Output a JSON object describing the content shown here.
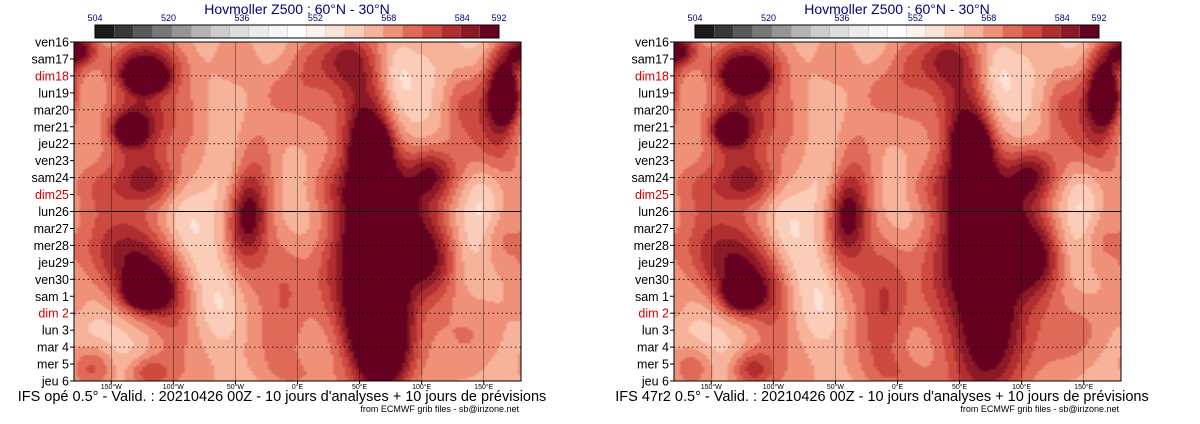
{
  "colors": {
    "title": "#000080",
    "weekday": "#000000",
    "sunday": "#d40000",
    "colorbar": [
      "#1a1a1a",
      "#383838",
      "#585858",
      "#787878",
      "#969696",
      "#b4b4b4",
      "#cccccc",
      "#dddddd",
      "#ebebeb",
      "#f5f5f5",
      "#ffffff",
      "#fff2ec",
      "#fde2d6",
      "#fbcdb9",
      "#f7b39a",
      "#ef9078",
      "#e06a58",
      "#cd4a40",
      "#b02e30",
      "#8c1a26",
      "#660020"
    ]
  },
  "chart_data": [
    {
      "type": "heatmap",
      "title": "Hovmoller Z500 : 60°N - 30°N",
      "caption": "IFS opé 0.5° - Valid. : 20210426 00Z - 10 jours d'analyses + 10 jours de prévisions",
      "credit": "from ECMWF grib files - sb@irizone.net",
      "colorbar_ticks": [
        "504",
        "520",
        "536",
        "552",
        "568",
        "584",
        "592"
      ],
      "colorbar_range": [
        504,
        592
      ],
      "xlim": [
        -180,
        180
      ],
      "x_ticks": [
        "150°W",
        "100°W",
        "50°W",
        "0°E",
        "50°E",
        "100°E",
        "150°E"
      ],
      "x_tick_values": [
        -150,
        -100,
        -50,
        0,
        50,
        100,
        150
      ],
      "y_labels": [
        "ven16",
        "sam17",
        "dim18",
        "lun19",
        "mar20",
        "mer21",
        "jeu22",
        "ven23",
        "sam24",
        "dim25",
        "lun26",
        "mar27",
        "mer28",
        "jeu29",
        "ven30",
        "sam 1",
        "dim 2",
        "lun 3",
        "mar 4",
        "mer 5",
        "jeu 6"
      ],
      "sunday_labels": [
        "dim18",
        "dim25",
        "dim 2"
      ],
      "analysis_forecast_split": "lun26",
      "blobs": [
        {
          "lon": -125,
          "day": 1.5,
          "w": 18,
          "h": 0.9,
          "v": 575
        },
        {
          "lon": -122,
          "day": 2.2,
          "w": 10,
          "h": 0.5,
          "v": 584
        },
        {
          "lon": -132,
          "day": 5.0,
          "w": 18,
          "h": 1.5,
          "v": 577
        },
        {
          "lon": -135,
          "day": 5.2,
          "w": 7,
          "h": 0.5,
          "v": 585
        },
        {
          "lon": -103,
          "day": 3.5,
          "w": 25,
          "h": 2.5,
          "v": 562
        },
        {
          "lon": -120,
          "day": 8.2,
          "w": 17,
          "h": 1.0,
          "v": 570
        },
        {
          "lon": -160,
          "day": 8.5,
          "w": 20,
          "h": 1.3,
          "v": 563
        },
        {
          "lon": -120,
          "day": 14.3,
          "w": 22,
          "h": 1.5,
          "v": 576
        },
        {
          "lon": -122,
          "day": 14.8,
          "w": 10,
          "h": 0.6,
          "v": 590
        },
        {
          "lon": -140,
          "day": 12.0,
          "w": 30,
          "h": 1.5,
          "v": 564
        },
        {
          "lon": -165,
          "day": 19.2,
          "w": 13,
          "h": 1.0,
          "v": 568
        },
        {
          "lon": -120,
          "day": 19.5,
          "w": 12,
          "h": 0.7,
          "v": 566
        },
        {
          "lon": -100,
          "day": 16.0,
          "w": 12,
          "h": 2.0,
          "v": 560
        },
        {
          "lon": -50,
          "day": 0.8,
          "w": 16,
          "h": 1.5,
          "v": 563
        },
        {
          "lon": -40,
          "day": 10.0,
          "w": 10,
          "h": 1.5,
          "v": 568
        },
        {
          "lon": -45,
          "day": 12.0,
          "w": 15,
          "h": 2.0,
          "v": 566
        },
        {
          "lon": -30,
          "day": 8.0,
          "w": 15,
          "h": 2.5,
          "v": 562
        },
        {
          "lon": -15,
          "day": 3.0,
          "w": 12,
          "h": 1.0,
          "v": 558
        },
        {
          "lon": -10,
          "day": 14.5,
          "w": 12,
          "h": 2.5,
          "v": 558
        },
        {
          "lon": -20,
          "day": 18.5,
          "w": 18,
          "h": 1.8,
          "v": 560
        },
        {
          "lon": 0,
          "day": 19.8,
          "w": 20,
          "h": 1.0,
          "v": 560
        },
        {
          "lon": 25,
          "day": 8.5,
          "w": 18,
          "h": 1.2,
          "v": 563
        },
        {
          "lon": 35,
          "day": 13.5,
          "w": 16,
          "h": 3.0,
          "v": 563
        },
        {
          "lon": 8,
          "day": 1.5,
          "w": 12,
          "h": 1.5,
          "v": 558
        },
        {
          "lon": 10,
          "day": 5.5,
          "w": 15,
          "h": 1.5,
          "v": 558
        },
        {
          "lon": 55,
          "day": 4.8,
          "w": 16,
          "h": 2.5,
          "v": 574
        },
        {
          "lon": 60,
          "day": 6.2,
          "w": 8,
          "h": 0.8,
          "v": 582
        },
        {
          "lon": 62,
          "day": 9.5,
          "w": 13,
          "h": 3.0,
          "v": 575
        },
        {
          "lon": 63,
          "day": 13.0,
          "w": 22,
          "h": 4.0,
          "v": 574
        },
        {
          "lon": 62,
          "day": 16.5,
          "w": 16,
          "h": 2.0,
          "v": 578
        },
        {
          "lon": 70,
          "day": 18.0,
          "w": 16,
          "h": 2.2,
          "v": 578
        },
        {
          "lon": 40,
          "day": 1.0,
          "w": 16,
          "h": 1.2,
          "v": 568
        },
        {
          "lon": 95,
          "day": 11.5,
          "w": 22,
          "h": 2.5,
          "v": 568
        },
        {
          "lon": 110,
          "day": 13.0,
          "w": 14,
          "h": 1.6,
          "v": 567
        },
        {
          "lon": 108,
          "day": 7.8,
          "w": 14,
          "h": 1.1,
          "v": 571
        },
        {
          "lon": 133,
          "day": 3.5,
          "w": 12,
          "h": 1.5,
          "v": 562
        },
        {
          "lon": 155,
          "day": 6.5,
          "w": 16,
          "h": 1.5,
          "v": 560
        },
        {
          "lon": 163,
          "day": 3.0,
          "w": 10,
          "h": 1.8,
          "v": 576
        },
        {
          "lon": 168,
          "day": 3.3,
          "w": 6,
          "h": 0.8,
          "v": 584
        },
        {
          "lon": 175,
          "day": 0.8,
          "w": 12,
          "h": 1.0,
          "v": 566
        },
        {
          "lon": 150,
          "day": 17.0,
          "w": 20,
          "h": 1.5,
          "v": 556
        },
        {
          "lon": 160,
          "day": 11.5,
          "w": 12,
          "h": 1.5,
          "v": 562
        },
        {
          "lon": -175,
          "day": 0.4,
          "w": 10,
          "h": 0.6,
          "v": 572
        },
        {
          "lon": -178,
          "day": 15.5,
          "w": 8,
          "h": 1.0,
          "v": 556
        },
        {
          "lon": -60,
          "day": 7.0,
          "w": 12,
          "h": 2.5,
          "v": 545
        },
        {
          "lon": -90,
          "day": 10.5,
          "w": 14,
          "h": 2.0,
          "v": 547
        },
        {
          "lon": -60,
          "day": 15.5,
          "w": 12,
          "h": 2.0,
          "v": 547
        },
        {
          "lon": 150,
          "day": 9.5,
          "w": 10,
          "h": 2.0,
          "v": 546
        },
        {
          "lon": 80,
          "day": 2.0,
          "w": 10,
          "h": 1.5,
          "v": 548
        }
      ]
    },
    {
      "type": "heatmap",
      "title": "Hovmoller Z500 : 60°N - 30°N",
      "caption": "IFS 47r2 0.5° - Valid. : 20210426 00Z - 10 jours d'analyses + 10 jours de prévisions",
      "credit": "from ECMWF grib files - sb@irizone.net",
      "colorbar_ticks": [
        "504",
        "520",
        "536",
        "552",
        "568",
        "584",
        "592"
      ],
      "colorbar_range": [
        504,
        592
      ],
      "xlim": [
        -180,
        180
      ],
      "x_ticks": [
        "150°W",
        "100°W",
        "50°W",
        "0°E",
        "50°E",
        "100°E",
        "150°E"
      ],
      "x_tick_values": [
        -150,
        -100,
        -50,
        0,
        50,
        100,
        150
      ],
      "y_labels": [
        "ven16",
        "sam17",
        "dim18",
        "lun19",
        "mar20",
        "mer21",
        "jeu22",
        "ven23",
        "sam24",
        "dim25",
        "lun26",
        "mar27",
        "mer28",
        "jeu29",
        "ven30",
        "sam 1",
        "dim 2",
        "lun 3",
        "mar 4",
        "mer 5",
        "jeu 6"
      ],
      "sunday_labels": [
        "dim18",
        "dim25",
        "dim 2"
      ],
      "analysis_forecast_split": "lun26",
      "blobs": [
        {
          "lon": -125,
          "day": 1.5,
          "w": 18,
          "h": 0.9,
          "v": 575
        },
        {
          "lon": -122,
          "day": 2.2,
          "w": 10,
          "h": 0.5,
          "v": 584
        },
        {
          "lon": -132,
          "day": 5.0,
          "w": 18,
          "h": 1.5,
          "v": 577
        },
        {
          "lon": -135,
          "day": 5.2,
          "w": 7,
          "h": 0.5,
          "v": 585
        },
        {
          "lon": -103,
          "day": 3.5,
          "w": 25,
          "h": 2.5,
          "v": 562
        },
        {
          "lon": -120,
          "day": 8.2,
          "w": 17,
          "h": 1.0,
          "v": 570
        },
        {
          "lon": -160,
          "day": 8.5,
          "w": 20,
          "h": 1.3,
          "v": 563
        },
        {
          "lon": -122,
          "day": 14.3,
          "w": 22,
          "h": 1.5,
          "v": 574
        },
        {
          "lon": -125,
          "day": 14.9,
          "w": 9,
          "h": 0.6,
          "v": 584
        },
        {
          "lon": -140,
          "day": 12.0,
          "w": 30,
          "h": 1.5,
          "v": 564
        },
        {
          "lon": -165,
          "day": 19.2,
          "w": 13,
          "h": 1.0,
          "v": 566
        },
        {
          "lon": -118,
          "day": 19.3,
          "w": 12,
          "h": 0.8,
          "v": 568
        },
        {
          "lon": -100,
          "day": 16.0,
          "w": 12,
          "h": 2.0,
          "v": 560
        },
        {
          "lon": -50,
          "day": 0.8,
          "w": 16,
          "h": 1.5,
          "v": 563
        },
        {
          "lon": -40,
          "day": 10.0,
          "w": 10,
          "h": 1.5,
          "v": 568
        },
        {
          "lon": -45,
          "day": 12.0,
          "w": 15,
          "h": 2.0,
          "v": 566
        },
        {
          "lon": -30,
          "day": 8.0,
          "w": 15,
          "h": 2.5,
          "v": 562
        },
        {
          "lon": -15,
          "day": 3.0,
          "w": 12,
          "h": 1.0,
          "v": 558
        },
        {
          "lon": -10,
          "day": 15.0,
          "w": 14,
          "h": 2.8,
          "v": 562
        },
        {
          "lon": -20,
          "day": 18.5,
          "w": 18,
          "h": 1.8,
          "v": 560
        },
        {
          "lon": 0,
          "day": 19.8,
          "w": 20,
          "h": 1.0,
          "v": 562
        },
        {
          "lon": 25,
          "day": 8.5,
          "w": 18,
          "h": 1.2,
          "v": 563
        },
        {
          "lon": 35,
          "day": 13.5,
          "w": 16,
          "h": 3.0,
          "v": 563
        },
        {
          "lon": 8,
          "day": 1.5,
          "w": 12,
          "h": 1.5,
          "v": 558
        },
        {
          "lon": 10,
          "day": 5.5,
          "w": 15,
          "h": 1.5,
          "v": 558
        },
        {
          "lon": 55,
          "day": 4.8,
          "w": 16,
          "h": 2.5,
          "v": 574
        },
        {
          "lon": 60,
          "day": 6.2,
          "w": 8,
          "h": 0.8,
          "v": 582
        },
        {
          "lon": 62,
          "day": 9.5,
          "w": 13,
          "h": 3.0,
          "v": 575
        },
        {
          "lon": 70,
          "day": 13.5,
          "w": 22,
          "h": 4.0,
          "v": 572
        },
        {
          "lon": 72,
          "day": 17.5,
          "w": 22,
          "h": 2.8,
          "v": 574
        },
        {
          "lon": 40,
          "day": 1.0,
          "w": 16,
          "h": 1.2,
          "v": 568
        },
        {
          "lon": 95,
          "day": 11.5,
          "w": 22,
          "h": 2.5,
          "v": 568
        },
        {
          "lon": 115,
          "day": 12.8,
          "w": 14,
          "h": 1.6,
          "v": 571
        },
        {
          "lon": 108,
          "day": 7.8,
          "w": 14,
          "h": 1.1,
          "v": 571
        },
        {
          "lon": 133,
          "day": 3.5,
          "w": 12,
          "h": 1.5,
          "v": 562
        },
        {
          "lon": 155,
          "day": 6.5,
          "w": 16,
          "h": 1.5,
          "v": 560
        },
        {
          "lon": 163,
          "day": 3.0,
          "w": 10,
          "h": 1.8,
          "v": 576
        },
        {
          "lon": 168,
          "day": 3.3,
          "w": 6,
          "h": 0.8,
          "v": 584
        },
        {
          "lon": 175,
          "day": 0.8,
          "w": 12,
          "h": 1.0,
          "v": 566
        },
        {
          "lon": 150,
          "day": 17.0,
          "w": 20,
          "h": 1.5,
          "v": 558
        },
        {
          "lon": 160,
          "day": 11.5,
          "w": 12,
          "h": 1.5,
          "v": 562
        },
        {
          "lon": -175,
          "day": 0.4,
          "w": 10,
          "h": 0.6,
          "v": 572
        },
        {
          "lon": -178,
          "day": 15.5,
          "w": 8,
          "h": 1.0,
          "v": 556
        },
        {
          "lon": -60,
          "day": 7.0,
          "w": 12,
          "h": 2.5,
          "v": 545
        },
        {
          "lon": -90,
          "day": 10.5,
          "w": 14,
          "h": 2.0,
          "v": 547
        },
        {
          "lon": -60,
          "day": 15.5,
          "w": 12,
          "h": 2.0,
          "v": 547
        },
        {
          "lon": 150,
          "day": 9.5,
          "w": 10,
          "h": 2.0,
          "v": 546
        },
        {
          "lon": 80,
          "day": 2.0,
          "w": 10,
          "h": 1.5,
          "v": 548
        }
      ]
    }
  ]
}
